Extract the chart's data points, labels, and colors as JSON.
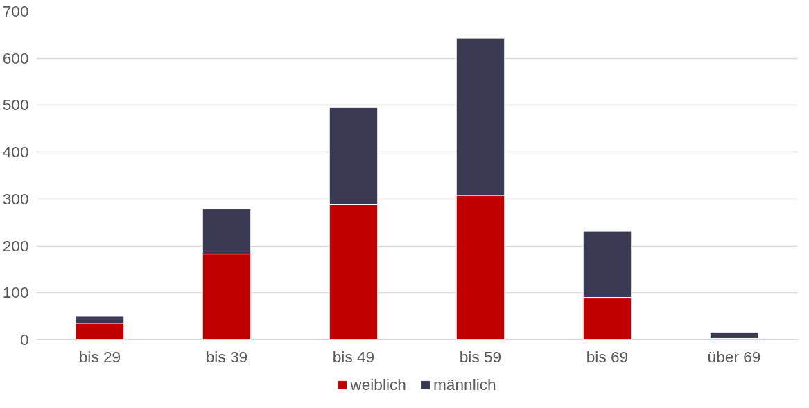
{
  "chart_data": {
    "type": "bar",
    "stacked": true,
    "categories": [
      "bis 29",
      "bis 39",
      "bis 49",
      "bis 59",
      "bis 69",
      "über 69"
    ],
    "series": [
      {
        "name": "weiblich",
        "color": "#c00000",
        "values": [
          35,
          183,
          288,
          308,
          90,
          3
        ]
      },
      {
        "name": "männlich",
        "color": "#393953",
        "values": [
          16,
          96,
          207,
          335,
          141,
          12
        ]
      }
    ],
    "ylim": [
      0,
      700
    ],
    "yticks": [
      0,
      100,
      200,
      300,
      400,
      500,
      600,
      700
    ],
    "grid": "y",
    "legend": "bottom"
  }
}
